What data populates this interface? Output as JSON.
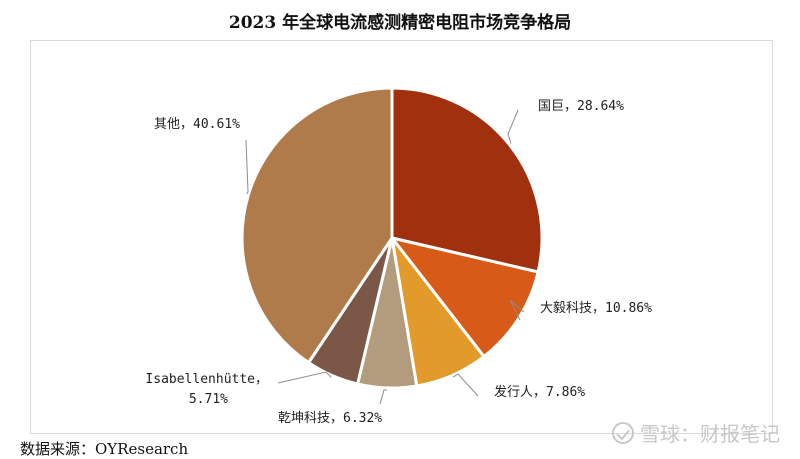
{
  "chart_data": {
    "type": "pie",
    "title": "2023 年全球电流感测精密电阻市场竞争格局",
    "slices": [
      {
        "label": "国巨",
        "value": 28.64,
        "display": "国巨，28.64%",
        "color": "#a1300f"
      },
      {
        "label": "大毅科技",
        "value": 10.86,
        "display": "大毅科技，10.86%",
        "color": "#d85a18"
      },
      {
        "label": "发行人",
        "value": 7.86,
        "display": "发行人，7.86%",
        "color": "#e29a2a"
      },
      {
        "label": "乾坤科技",
        "value": 6.32,
        "display": "乾坤科技，6.32%",
        "color": "#b39c7e"
      },
      {
        "label": "Isabellenhütte",
        "value": 5.71,
        "display": "Isabellenhütte，5.71%",
        "display_line1": "Isabellenhütte，",
        "display_line2": "5.71%",
        "color": "#7b5747"
      },
      {
        "label": "其他",
        "value": 40.61,
        "display": "其他，40.61%",
        "color": "#b07b4a"
      }
    ],
    "start_angle": "12 o'clock",
    "direction": "clockwise"
  },
  "source": "数据来源：OYResearch",
  "watermark": "雪球：财报笔记"
}
